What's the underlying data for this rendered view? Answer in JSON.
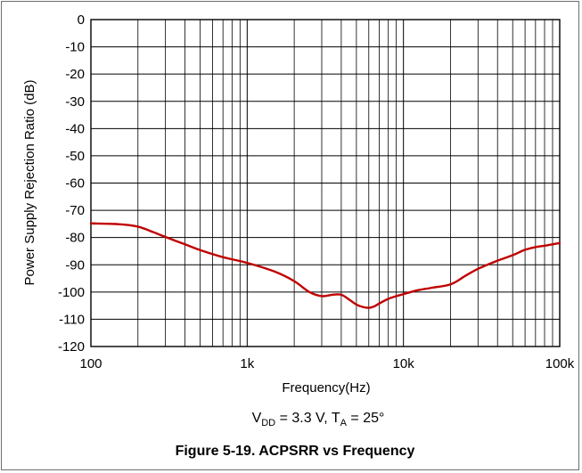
{
  "chart_data": {
    "type": "line",
    "xlabel": "Frequency(Hz)",
    "ylabel": "Power Supply Rejection Ratio (dB)",
    "x_scale": "log",
    "xlim": [
      100,
      100000
    ],
    "ylim": [
      -120,
      0
    ],
    "grid": true,
    "x_ticks": [
      100,
      1000,
      10000,
      100000
    ],
    "x_tick_labels": [
      "100",
      "1k",
      "10k",
      "100k"
    ],
    "y_ticks": [
      0,
      -10,
      -20,
      -30,
      -40,
      -50,
      -60,
      -70,
      -80,
      -90,
      -100,
      -110,
      -120
    ],
    "y_tick_labels": [
      "0",
      "-10",
      "-20",
      "-30",
      "-40",
      "-50",
      "-60",
      "-70",
      "-80",
      "-90",
      "-100",
      "-110",
      "-120"
    ],
    "series": [
      {
        "color": "#c00000",
        "x": [
          100,
          150,
          200,
          250,
          300,
          400,
          500,
          700,
          1000,
          1500,
          2000,
          2500,
          3000,
          3500,
          4000,
          4500,
          5000,
          5500,
          6000,
          6500,
          7000,
          8000,
          9000,
          10000,
          12000,
          15000,
          20000,
          25000,
          30000,
          40000,
          50000,
          60000,
          70000,
          80000,
          100000
        ],
        "y": [
          -74.8,
          -75.1,
          -76.0,
          -78.0,
          -79.8,
          -82.5,
          -84.6,
          -87.2,
          -89.3,
          -92.5,
          -96.0,
          -100.0,
          -101.5,
          -101.0,
          -101.0,
          -102.8,
          -104.6,
          -105.5,
          -105.8,
          -105.3,
          -104.2,
          -102.5,
          -101.5,
          -100.8,
          -99.5,
          -98.5,
          -97.2,
          -94.0,
          -91.5,
          -88.5,
          -86.5,
          -84.5,
          -83.5,
          -83.0,
          -82.0
        ]
      }
    ],
    "conditions": {
      "v_symbol": "V",
      "v_sub": "DD",
      "v_value": " = 3.3 V, ",
      "t_symbol": "T",
      "t_sub": "A",
      "t_value": " = 25°"
    },
    "caption": "Figure 5-19. ACPSRR vs Frequency"
  }
}
